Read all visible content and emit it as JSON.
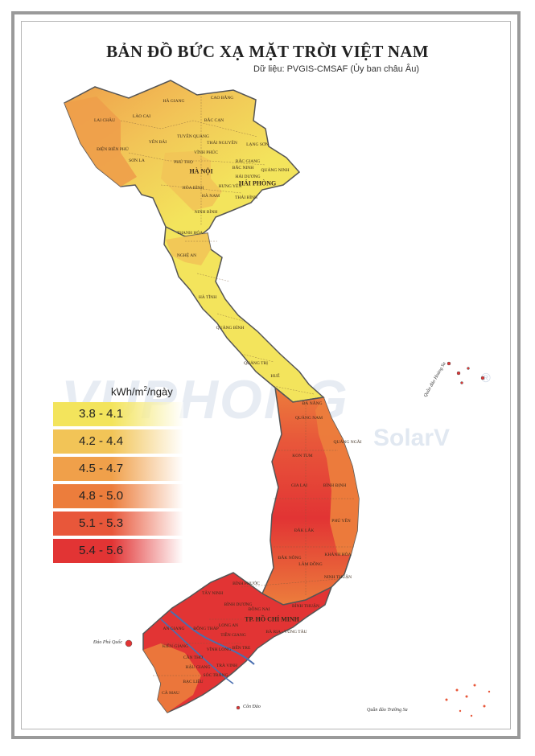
{
  "title": "BẢN ĐỒ BỨC XẠ MẶT TRỜI VIỆT NAM",
  "subtitle": "Dữ liệu: PVGIS-CMSAF (Ủy ban châu Âu)",
  "watermark": {
    "main": "VUPHONG",
    "sub": "SolarV",
    "mark": "®"
  },
  "legend": {
    "unit": "kWh/m",
    "unit_sup": "2",
    "unit_tail": "/ngày",
    "classes": [
      {
        "label": "3.8 - 4.1",
        "color": "#f3e45c"
      },
      {
        "label": "4.2 - 4.4",
        "color": "#f2c457"
      },
      {
        "label": "4.5 - 4.7",
        "color": "#f0a04a"
      },
      {
        "label": "4.8 - 5.0",
        "color": "#ec7d3c"
      },
      {
        "label": "5.1 - 5.3",
        "color": "#e8573a"
      },
      {
        "label": "5.4 - 5.6",
        "color": "#e23434"
      }
    ]
  },
  "provinces": {
    "ha_giang": "HÀ GIANG",
    "cao_bang": "CAO BẰNG",
    "lao_cai": "LÀO CAI",
    "lai_chau": "LAI CHÂU",
    "bac_can": "BẮC CẠN",
    "yen_bai": "YÊN BÁI",
    "tuyen_quang": "TUYÊN QUANG",
    "thai_nguyen": "THÁI NGUYÊN",
    "lang_son": "LẠNG SƠN",
    "dien_bien_phu": "ĐIỆN BIÊN PHỦ",
    "son_la": "SƠN LA",
    "phu_tho": "PHÚ THỌ",
    "vinh_phuc": "VĨNH PHÚC",
    "bac_giang": "BẮC GIANG",
    "bac_ninh": "BẮC NINH",
    "quang_ninh": "QUẢNG NINH",
    "hai_duong": "HẢI DƯƠNG",
    "ha_noi": "HÀ NỘI",
    "hoa_binh": "HÒA BÌNH",
    "hung_yen": "HƯNG YÊN",
    "hai_phong": "HẢI PHÒNG",
    "ha_nam": "HÀ NAM",
    "thai_binh": "THÁI BÌNH",
    "ninh_binh": "NINH BÌNH",
    "thanh_hoa": "THANH HÓA",
    "nghe_an": "NGHỆ AN",
    "ha_tinh": "HÀ TĨNH",
    "quang_binh": "QUẢNG BÌNH",
    "quang_tri": "QUẢNG TRỊ",
    "hue": "HUẾ",
    "da_nang": "ĐÀ NẴNG",
    "quang_nam": "QUẢNG NAM",
    "quang_ngai": "QUẢNG NGÃI",
    "kon_tum": "KON TUM",
    "gia_lai": "GIA LAI",
    "binh_dinh": "BÌNH ĐỊNH",
    "phu_yen": "PHÚ YÊN",
    "dak_lak": "ĐẮK LẮK",
    "khanh_hoa": "KHÁNH HÒA",
    "dak_nong": "ĐẮK NÔNG",
    "lam_dong": "LÂM ĐỒNG",
    "ninh_thuan": "NINH THUẬN",
    "binh_phuoc": "BÌNH PHƯỚC",
    "tay_ninh": "TÂY NINH",
    "binh_duong": "BÌNH DƯƠNG",
    "dong_nai": "ĐỒNG NAI",
    "binh_thuan": "BÌNH THUẬN",
    "tp_hcm": "TP. HỒ CHÍ MINH",
    "long_an": "LONG AN",
    "tien_giang": "TIỀN GIANG",
    "ba_ria": "BÀ RỊA - VŨNG TÀU",
    "an_giang": "AN GIANG",
    "dong_thap": "ĐỒNG THÁP",
    "kien_giang": "KIÊN GIANG",
    "can_tho": "CẦN THƠ",
    "vinh_long": "VĨNH LONG",
    "ben_tre": "BẾN TRE",
    "hau_giang": "HẬU GIANG",
    "tra_vinh": "TRÀ VINH",
    "soc_trang": "SÓC TRĂNG",
    "bac_lieu": "BẠC LIÊU",
    "ca_mau": "CÀ MAU"
  },
  "islands": {
    "hoang_sa": "Quần đảo Hoàng Sa",
    "truong_sa": "Quần đảo Trường Sa",
    "phu_quoc": "Đảo Phú Quốc",
    "con_dao": "Côn Đảo"
  }
}
